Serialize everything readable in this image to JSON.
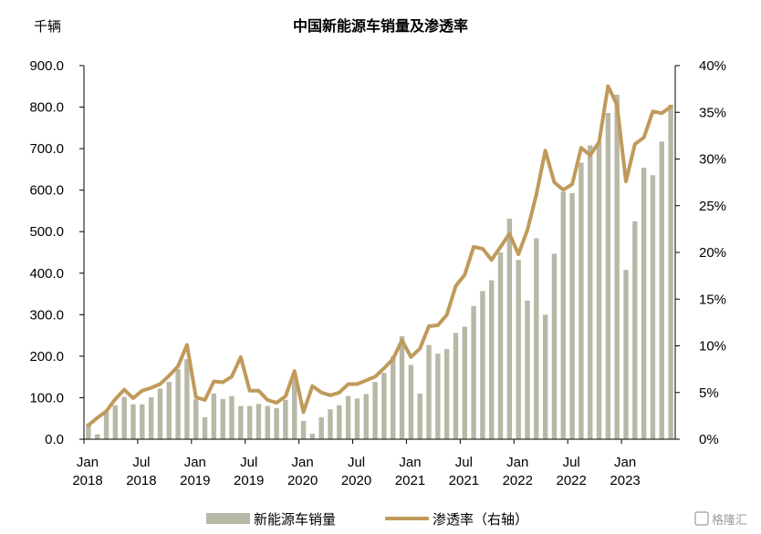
{
  "chart_data": {
    "type": "bar+line",
    "title": "中国新能源车销量及渗透率",
    "left_unit": "千辆",
    "x_tick_labels": [
      {
        "month": "Jan",
        "year": "2018",
        "index": 0
      },
      {
        "month": "Jul",
        "year": "2018",
        "index": 6
      },
      {
        "month": "Jan",
        "year": "2019",
        "index": 12
      },
      {
        "month": "Jul",
        "year": "2019",
        "index": 18
      },
      {
        "month": "Jan",
        "year": "2020",
        "index": 24
      },
      {
        "month": "Jul",
        "year": "2020",
        "index": 30
      },
      {
        "month": "Jan",
        "year": "2021",
        "index": 36
      },
      {
        "month": "Jul",
        "year": "2021",
        "index": 42
      },
      {
        "month": "Jan",
        "year": "2022",
        "index": 48
      },
      {
        "month": "Jul",
        "year": "2022",
        "index": 54
      },
      {
        "month": "Jan",
        "year": "2023",
        "index": 60
      }
    ],
    "y_left": {
      "min": 0,
      "max": 900,
      "step": 100,
      "tick_labels": [
        "0.0",
        "100.0",
        "200.0",
        "300.0",
        "400.0",
        "500.0",
        "600.0",
        "700.0",
        "800.0",
        "900.0"
      ]
    },
    "y_right": {
      "min": 0,
      "max": 40,
      "step": 5,
      "tick_labels": [
        "0%",
        "5%",
        "10%",
        "15%",
        "20%",
        "25%",
        "30%",
        "35%",
        "40%"
      ]
    },
    "grid": false,
    "legend_position": "bottom",
    "series": [
      {
        "name": "新能源车销量",
        "type": "bar",
        "axis": "left",
        "color": "#b8b8a6",
        "values": [
          38,
          12,
          68,
          82,
          102,
          84,
          84,
          101,
          122,
          138,
          169,
          193,
          96,
          53,
          110,
          97,
          104,
          80,
          80,
          85,
          80,
          75,
          95,
          155,
          44,
          13,
          53,
          72,
          82,
          104,
          98,
          109,
          138,
          160,
          200,
          248,
          179,
          110,
          227,
          206,
          217,
          256,
          271,
          321,
          357,
          383,
          450,
          531,
          432,
          334,
          484,
          300,
          447,
          596,
          593,
          666,
          708,
          714,
          786,
          830,
          408,
          525,
          654,
          636,
          717,
          806
        ]
      },
      {
        "name": "渗透率（右轴）",
        "type": "line",
        "axis": "right",
        "color": "#c09a5b",
        "values": [
          1.5,
          2.3,
          3.0,
          4.3,
          5.3,
          4.4,
          5.2,
          5.5,
          5.9,
          6.8,
          7.8,
          10.1,
          4.5,
          4.2,
          6.2,
          6.1,
          6.7,
          8.8,
          5.2,
          5.2,
          4.2,
          3.9,
          4.6,
          7.3,
          2.9,
          5.7,
          5.0,
          4.7,
          5.0,
          5.9,
          5.9,
          6.3,
          6.7,
          7.6,
          8.6,
          10.6,
          8.8,
          9.7,
          12.1,
          12.2,
          13.3,
          16.4,
          17.6,
          20.6,
          20.4,
          19.2,
          20.6,
          22.0,
          19.8,
          22.4,
          26.2,
          30.9,
          27.5,
          26.7,
          27.3,
          31.2,
          30.4,
          31.8,
          37.8,
          35.8,
          27.6,
          31.6,
          32.3,
          35.1,
          34.9,
          35.6
        ]
      }
    ]
  },
  "watermark": "格隆汇",
  "colors": {
    "bar": "#b8b8a6",
    "line": "#c09a5b",
    "axis": "#000000"
  }
}
